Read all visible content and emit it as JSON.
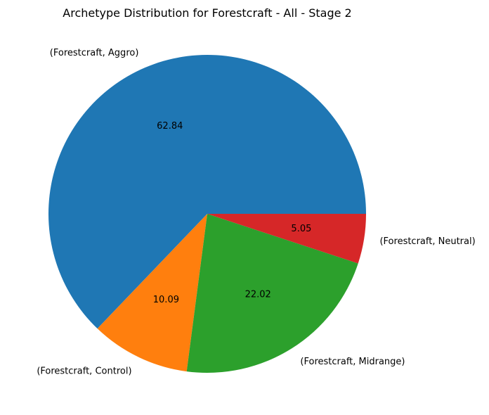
{
  "chart_data": {
    "type": "pie",
    "title": "Archetype Distribution for Forestcraft - All - Stage 2",
    "start_angle_deg": 0,
    "direction": "counterclockwise",
    "slices": [
      {
        "label": "(Forestcraft, Aggro)",
        "value": 62.84,
        "value_label": "62.84",
        "color": "#1f77b4"
      },
      {
        "label": "(Forestcraft, Control)",
        "value": 10.09,
        "value_label": "10.09",
        "color": "#ff7f0e"
      },
      {
        "label": "(Forestcraft, Midrange)",
        "value": 22.02,
        "value_label": "22.02",
        "color": "#2ca02c"
      },
      {
        "label": "(Forestcraft, Neutral)",
        "value": 5.05,
        "value_label": "5.05",
        "color": "#d62728"
      }
    ]
  }
}
